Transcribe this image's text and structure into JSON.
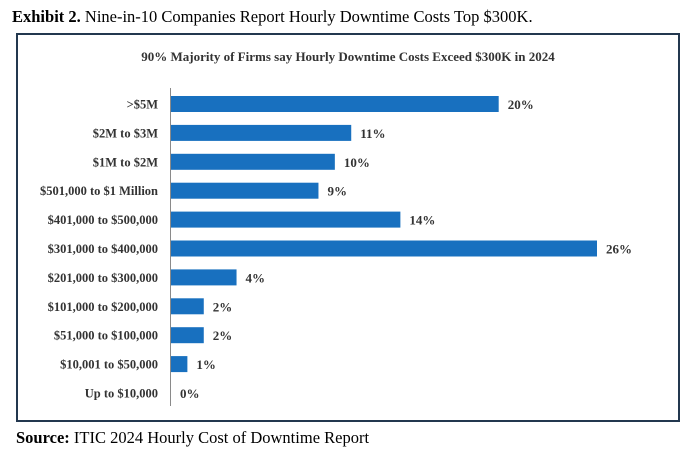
{
  "header": {
    "prefix": "Exhibit 2.",
    "text": "Nine-in-10 Companies Report Hourly Downtime Costs Top $300K."
  },
  "footer": {
    "prefix": "Source:",
    "text": "ITIC 2024 Hourly Cost of Downtime Report"
  },
  "colors": {
    "bar": "#1870bf",
    "frame": "#23384f",
    "axis": "#8a8a8a"
  },
  "chart_data": {
    "type": "bar",
    "orientation": "horizontal",
    "title": "90% Majority of Firms say Hourly Downtime Costs Exceed $300K in 2024",
    "categories": [
      ">$5M",
      "$2M to $3M",
      "$1M to $2M",
      "$501,000 to $1 Million",
      "$401,000 to $500,000",
      "$301,000 to $400,000",
      "$201,000 to $300,000",
      "$101,000 to $200,000",
      "$51,000 to $100,000",
      "$10,001 to $50,000",
      "Up to $10,000"
    ],
    "values": [
      20,
      11,
      10,
      9,
      14,
      26,
      4,
      2,
      2,
      1,
      0
    ],
    "labels": [
      "20%",
      "11%",
      "10%",
      "9%",
      "14%",
      "26%",
      "4%",
      "2%",
      "2%",
      "1%",
      "0%"
    ],
    "unit": "%",
    "xlim": [
      0,
      26
    ],
    "grid": false,
    "legend": "none"
  }
}
